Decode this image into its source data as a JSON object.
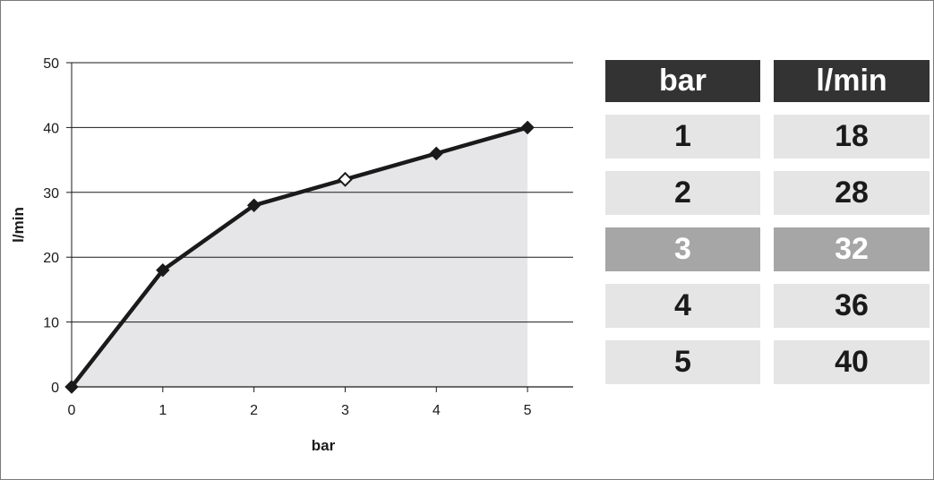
{
  "chart_data": {
    "type": "area",
    "x": [
      0,
      1,
      2,
      3,
      4,
      5
    ],
    "y": [
      0,
      18,
      28,
      32,
      36,
      40
    ],
    "xlabel": "bar",
    "ylabel": "l/min",
    "xlim": [
      0,
      5.5
    ],
    "ylim": [
      0,
      50
    ],
    "x_ticks": [
      "0",
      "1",
      "2",
      "3",
      "4",
      "5"
    ],
    "y_ticks": [
      "0",
      "10",
      "20",
      "30",
      "40",
      "50"
    ],
    "highlight_index": 3,
    "grid": "horizontal",
    "legend": "none",
    "colors": {
      "line": "#1a1a1a",
      "area": "#e6e6e9",
      "grid": "#1a1a1a"
    }
  },
  "table": {
    "headers": [
      "bar",
      "l/min"
    ],
    "rows": [
      [
        "1",
        "18"
      ],
      [
        "2",
        "28"
      ],
      [
        "3",
        "32"
      ],
      [
        "4",
        "36"
      ],
      [
        "5",
        "40"
      ]
    ],
    "highlight_row": 2,
    "colors": {
      "header": "#333333",
      "row": "#e5e5e5",
      "highlight": "#a6a6a6"
    }
  }
}
